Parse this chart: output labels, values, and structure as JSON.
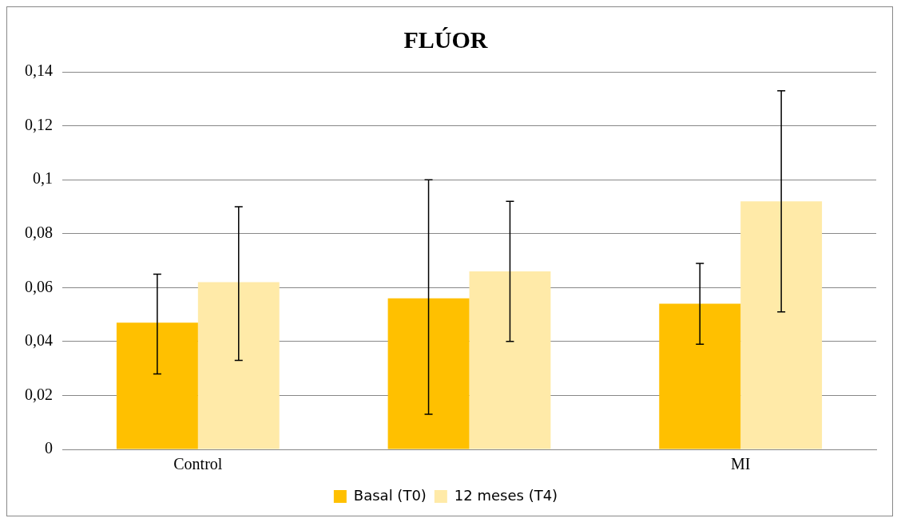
{
  "chart_data": {
    "type": "bar",
    "title": "FLÚOR",
    "categories": [
      "Control",
      null,
      "MI"
    ],
    "series": [
      {
        "name": "Basal (T0)",
        "color": "#ffc000",
        "values": [
          0.047,
          0.056,
          0.054
        ],
        "errors": [
          [
            0.028,
            0.065
          ],
          [
            0.013,
            0.1
          ],
          [
            0.039,
            0.069
          ]
        ]
      },
      {
        "name": "12 meses (T4)",
        "color": "#ffeaa8",
        "values": [
          0.062,
          0.066,
          0.092
        ],
        "errors": [
          [
            0.033,
            0.09
          ],
          [
            0.04,
            0.092
          ],
          [
            0.051,
            0.133
          ]
        ]
      }
    ],
    "ylim": [
      0,
      0.14
    ],
    "yticks": [
      {
        "value": 0,
        "label": "0"
      },
      {
        "value": 0.02,
        "label": "0,02"
      },
      {
        "value": 0.04,
        "label": "0,04"
      },
      {
        "value": 0.06,
        "label": "0,06"
      },
      {
        "value": 0.08,
        "label": "0,08"
      },
      {
        "value": 0.1,
        "label": "0,1"
      },
      {
        "value": 0.12,
        "label": "0,12"
      },
      {
        "value": 0.14,
        "label": "0,14"
      }
    ],
    "grid": "y",
    "legend": "bottom"
  }
}
